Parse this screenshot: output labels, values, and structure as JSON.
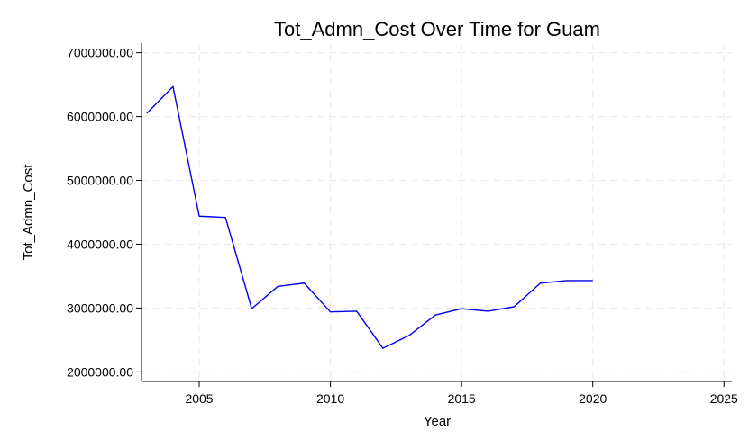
{
  "chart_data": {
    "type": "line",
    "title": "Tot_Admn_Cost Over Time for Guam",
    "xlabel": "Year",
    "ylabel": "Tot_Admn_Cost",
    "xlim": [
      2002.8,
      2025.3
    ],
    "ylim": [
      1850000,
      7150000
    ],
    "xticks": [
      2005,
      2010,
      2015,
      2020,
      2025
    ],
    "xtick_labels": [
      "2005",
      "2010",
      "2015",
      "2020",
      "2025"
    ],
    "yticks": [
      2000000,
      3000000,
      4000000,
      5000000,
      6000000,
      7000000
    ],
    "ytick_labels": [
      "2000000.00",
      "3000000.00",
      "4000000.00",
      "5000000.00",
      "6000000.00",
      "7000000.00"
    ],
    "grid": true,
    "series": [
      {
        "color": "#0000ee",
        "x": [
          2003,
          2004,
          2005,
          2006,
          2007,
          2008,
          2009,
          2010,
          2011,
          2012,
          2013,
          2014,
          2015,
          2016,
          2017,
          2018,
          2019,
          2020
        ],
        "y": [
          6050000,
          6470000,
          4440000,
          4420000,
          2990000,
          3340000,
          3390000,
          2940000,
          2950000,
          2370000,
          2570000,
          2890000,
          2990000,
          2950000,
          3020000,
          3390000,
          3430000,
          3430000
        ]
      }
    ]
  }
}
